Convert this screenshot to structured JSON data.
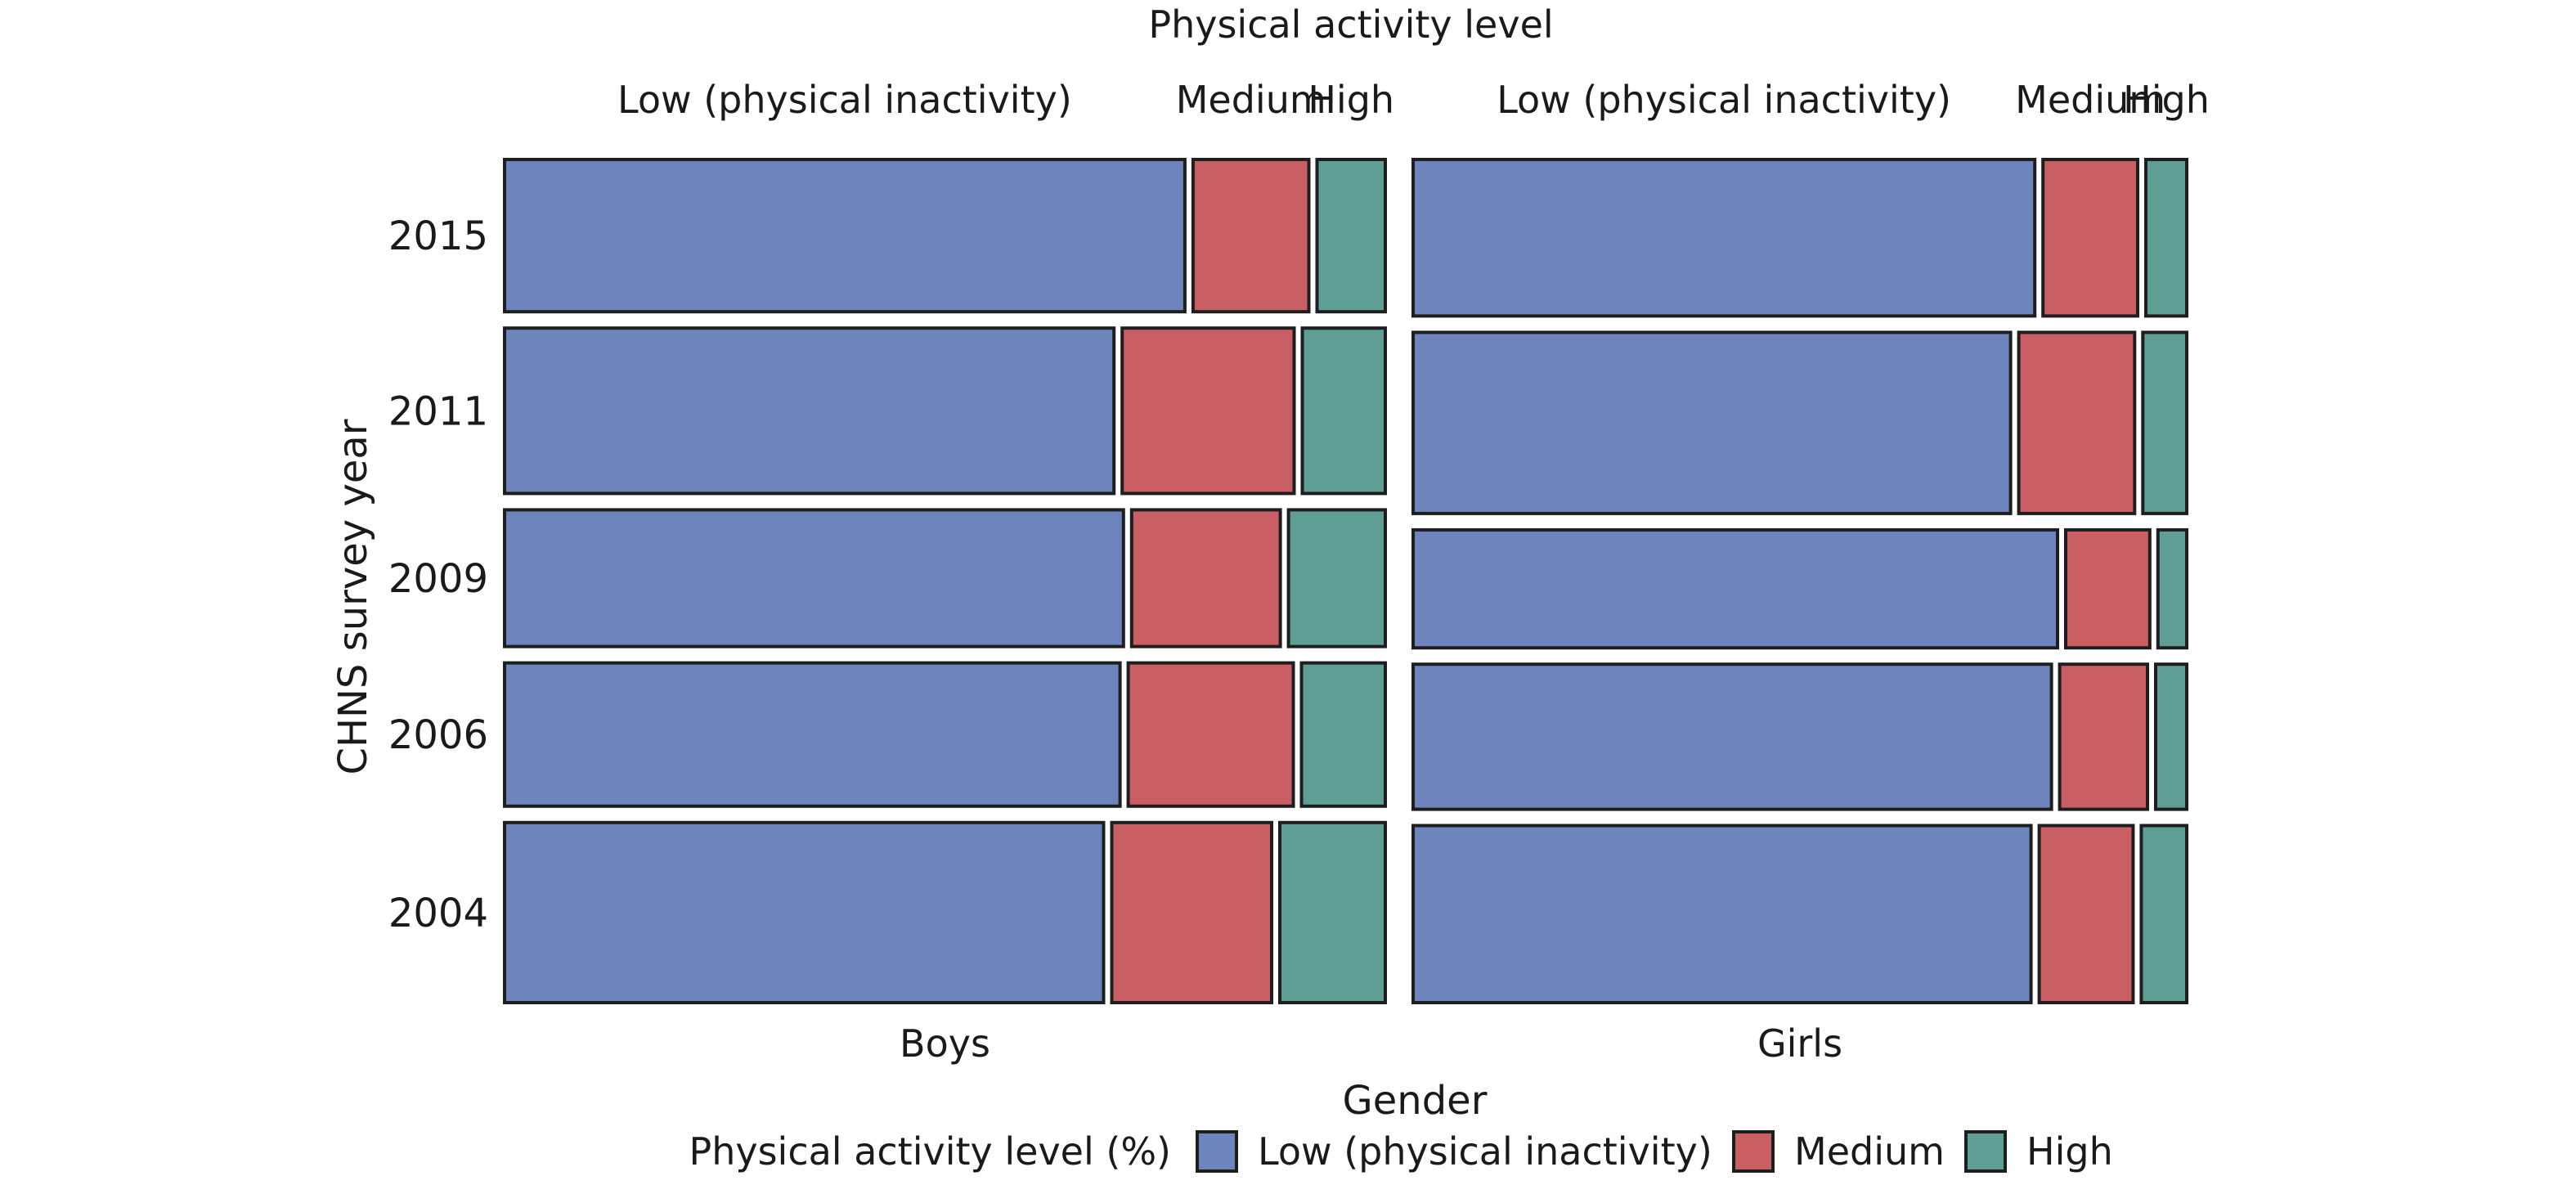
{
  "chart_data": {
    "type": "mosaic",
    "title": "Physical activity level",
    "xlabel": "Gender",
    "ylabel": "CHNS survey year",
    "column_labels": [
      "Low (physical inactivity)",
      "Medium",
      "High"
    ],
    "levels": [
      "Low (physical inactivity)",
      "Medium",
      "High"
    ],
    "colors": {
      "low": "#6e84bc",
      "medium": "#c95f65",
      "high": "#5e9e95"
    },
    "legend": {
      "title": "Physical activity level (%)",
      "position": "bottom",
      "entries": [
        "Low (physical inactivity)",
        "Medium",
        "High"
      ]
    },
    "years": [
      "2015",
      "2011",
      "2009",
      "2006",
      "2004"
    ],
    "groups": [
      {
        "name": "Boys",
        "rows": [
          {
            "year": "2015",
            "share": 0.186,
            "values": [
              78.7,
              13.4,
              7.9
            ]
          },
          {
            "year": "2011",
            "share": 0.202,
            "values": [
              70.5,
              19.9,
              9.6
            ]
          },
          {
            "year": "2009",
            "share": 0.167,
            "values": [
              71.6,
              17.2,
              11.2
            ]
          },
          {
            "year": "2006",
            "share": 0.175,
            "values": [
              71.2,
              19.1,
              9.7
            ]
          },
          {
            "year": "2004",
            "share": 0.22,
            "values": [
              69.3,
              18.5,
              12.2
            ]
          }
        ]
      },
      {
        "name": "Girls",
        "rows": [
          {
            "year": "2015",
            "share": 0.191,
            "values": [
              82.1,
              12.5,
              5.4
            ]
          },
          {
            "year": "2011",
            "share": 0.221,
            "values": [
              78.9,
              15.3,
              5.8
            ]
          },
          {
            "year": "2009",
            "share": 0.144,
            "values": [
              85.1,
              11.1,
              3.8
            ]
          },
          {
            "year": "2006",
            "share": 0.177,
            "values": [
              84.3,
              11.6,
              4.1
            ]
          },
          {
            "year": "2004",
            "share": 0.216,
            "values": [
              81.6,
              12.4,
              6.0
            ]
          }
        ]
      }
    ]
  }
}
